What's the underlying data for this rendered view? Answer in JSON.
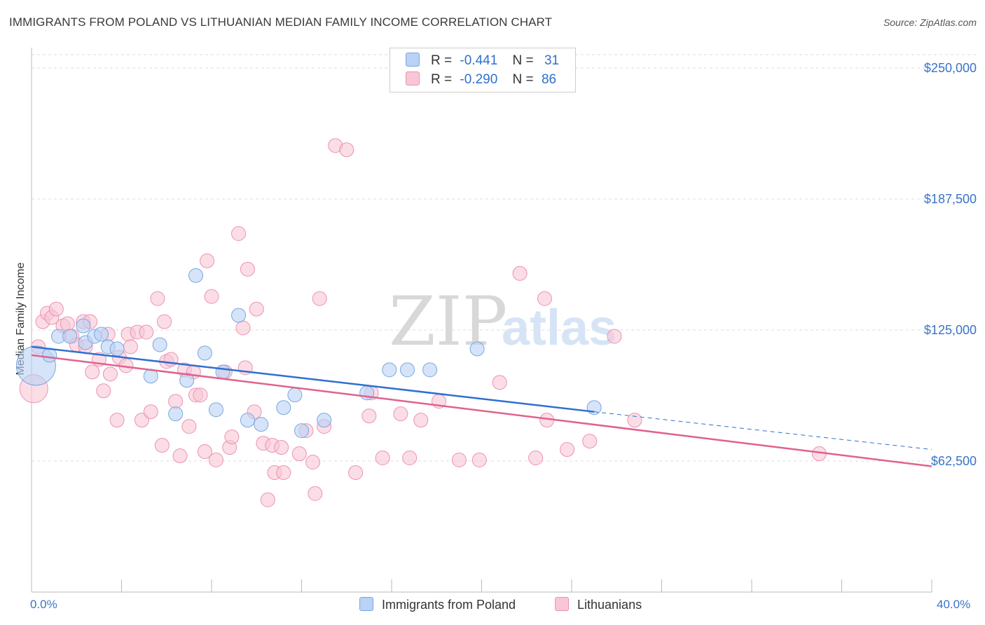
{
  "title": "IMMIGRANTS FROM POLAND VS LITHUANIAN MEDIAN FAMILY INCOME CORRELATION CHART",
  "source": "Source: ZipAtlas.com",
  "watermark": {
    "zip": "ZIP",
    "atlas": "atlas"
  },
  "legend": {
    "poland": {
      "r_label": "R =",
      "r_value": "-0.441",
      "n_label": "N =",
      "n_value": "31"
    },
    "lithuanians": {
      "r_label": "R =",
      "r_value": "-0.290",
      "n_label": "N =",
      "n_value": "86"
    }
  },
  "colors": {
    "poland_fill": "#b9d2f5",
    "poland_stroke": "#7aa6e0",
    "poland_line": "#2f6fd0",
    "lith_fill": "#f8c6d6",
    "lith_stroke": "#ec92b0",
    "lith_line": "#e0628e",
    "axis_text": "#3a74c8",
    "grid": "#dddddd"
  },
  "chart_data": {
    "type": "scatter",
    "title": "IMMIGRANTS FROM POLAND VS LITHUANIAN MEDIAN FAMILY INCOME CORRELATION CHART",
    "xlabel": "",
    "ylabel": "Median Family Income",
    "xlim": [
      0,
      40
    ],
    "ylim": [
      0,
      250000
    ],
    "x_tick_labels": [
      "0.0%",
      "40.0%"
    ],
    "y_ticks": [
      62500,
      125000,
      187500,
      250000
    ],
    "y_tick_labels": [
      "$62,500",
      "$125,000",
      "$187,500",
      "$250,000"
    ],
    "grid": true,
    "legend_position": "top-center",
    "series": [
      {
        "name": "Immigrants from Poland",
        "points": [
          [
            0.2,
            108000,
            3
          ],
          [
            0.8,
            113000,
            1
          ],
          [
            1.2,
            122000,
            1
          ],
          [
            1.7,
            122000,
            1
          ],
          [
            2.3,
            127000,
            1
          ],
          [
            2.4,
            119000,
            1
          ],
          [
            2.8,
            122000,
            1
          ],
          [
            3.1,
            123000,
            1
          ],
          [
            3.4,
            117000,
            1
          ],
          [
            3.8,
            116000,
            1
          ],
          [
            5.3,
            103000,
            1
          ],
          [
            5.7,
            118000,
            1
          ],
          [
            6.4,
            85000,
            1
          ],
          [
            6.9,
            101000,
            1
          ],
          [
            7.3,
            151000,
            1
          ],
          [
            7.7,
            114000,
            1
          ],
          [
            8.2,
            87000,
            1
          ],
          [
            8.5,
            105000,
            1
          ],
          [
            9.2,
            132000,
            1
          ],
          [
            9.6,
            82000,
            1
          ],
          [
            10.2,
            80000,
            1
          ],
          [
            11.2,
            88000,
            1
          ],
          [
            11.7,
            94000,
            1
          ],
          [
            12.0,
            77000,
            1
          ],
          [
            13.0,
            82000,
            1
          ],
          [
            14.9,
            95000,
            1
          ],
          [
            15.9,
            106000,
            1
          ],
          [
            16.7,
            106000,
            1
          ],
          [
            17.7,
            106000,
            1
          ],
          [
            19.8,
            116000,
            1
          ],
          [
            25.0,
            88000,
            1
          ]
        ]
      },
      {
        "name": "Lithuanians",
        "points": [
          [
            0.1,
            97000,
            2
          ],
          [
            0.3,
            117000,
            1
          ],
          [
            0.5,
            129000,
            1
          ],
          [
            0.7,
            133000,
            1
          ],
          [
            0.9,
            131000,
            1
          ],
          [
            1.1,
            135000,
            1
          ],
          [
            1.4,
            127000,
            1
          ],
          [
            1.6,
            128000,
            1
          ],
          [
            1.8,
            122000,
            1
          ],
          [
            2.0,
            118000,
            1
          ],
          [
            2.3,
            129000,
            1
          ],
          [
            2.4,
            117000,
            1
          ],
          [
            2.6,
            129000,
            1
          ],
          [
            2.7,
            105000,
            1
          ],
          [
            3.0,
            111000,
            1
          ],
          [
            3.2,
            96000,
            1
          ],
          [
            3.4,
            123000,
            1
          ],
          [
            3.5,
            104000,
            1
          ],
          [
            3.8,
            82000,
            1
          ],
          [
            3.9,
            112000,
            1
          ],
          [
            4.2,
            108000,
            1
          ],
          [
            4.3,
            123000,
            1
          ],
          [
            4.4,
            117000,
            1
          ],
          [
            4.7,
            124000,
            1
          ],
          [
            4.9,
            82000,
            1
          ],
          [
            5.1,
            124000,
            1
          ],
          [
            5.3,
            86000,
            1
          ],
          [
            5.6,
            140000,
            1
          ],
          [
            5.8,
            70000,
            1
          ],
          [
            5.9,
            129000,
            1
          ],
          [
            6.0,
            110000,
            1
          ],
          [
            6.2,
            111000,
            1
          ],
          [
            6.4,
            91000,
            1
          ],
          [
            6.6,
            65000,
            1
          ],
          [
            6.8,
            106000,
            1
          ],
          [
            7.0,
            79000,
            1
          ],
          [
            7.2,
            105000,
            1
          ],
          [
            7.3,
            94000,
            1
          ],
          [
            7.5,
            94000,
            1
          ],
          [
            7.7,
            67000,
            1
          ],
          [
            7.8,
            158000,
            1
          ],
          [
            8.0,
            141000,
            1
          ],
          [
            8.2,
            63000,
            1
          ],
          [
            8.6,
            105000,
            1
          ],
          [
            8.8,
            69000,
            1
          ],
          [
            8.9,
            74000,
            1
          ],
          [
            9.2,
            171000,
            1
          ],
          [
            9.4,
            126000,
            1
          ],
          [
            9.5,
            107000,
            1
          ],
          [
            9.6,
            154000,
            1
          ],
          [
            9.9,
            86000,
            1
          ],
          [
            10.0,
            135000,
            1
          ],
          [
            10.3,
            71000,
            1
          ],
          [
            10.5,
            44000,
            1
          ],
          [
            10.7,
            70000,
            1
          ],
          [
            10.8,
            57000,
            1
          ],
          [
            11.1,
            69000,
            1
          ],
          [
            11.2,
            57000,
            1
          ],
          [
            11.9,
            66000,
            1
          ],
          [
            12.2,
            77000,
            1
          ],
          [
            12.5,
            62000,
            1
          ],
          [
            12.6,
            47000,
            1
          ],
          [
            12.8,
            140000,
            1
          ],
          [
            13.0,
            79000,
            1
          ],
          [
            13.5,
            213000,
            1
          ],
          [
            14.0,
            211000,
            1
          ],
          [
            14.4,
            57000,
            1
          ],
          [
            15.0,
            84000,
            1
          ],
          [
            15.1,
            95000,
            1
          ],
          [
            15.6,
            64000,
            1
          ],
          [
            16.4,
            85000,
            1
          ],
          [
            16.8,
            64000,
            1
          ],
          [
            17.3,
            82000,
            1
          ],
          [
            18.1,
            91000,
            1
          ],
          [
            19.0,
            63000,
            1
          ],
          [
            19.9,
            63000,
            1
          ],
          [
            20.8,
            100000,
            1
          ],
          [
            21.7,
            152000,
            1
          ],
          [
            22.4,
            64000,
            1
          ],
          [
            22.8,
            140000,
            1
          ],
          [
            22.9,
            82000,
            1
          ],
          [
            23.8,
            68000,
            1
          ],
          [
            24.8,
            72000,
            1
          ],
          [
            25.9,
            122000,
            1
          ],
          [
            26.8,
            82000,
            1
          ],
          [
            35.0,
            66000,
            1
          ]
        ]
      }
    ],
    "trendlines": [
      {
        "series": "Immigrants from Poland",
        "x0": 0,
        "y0": 117000,
        "x1": 25,
        "y1": 86000,
        "dashed_to_x": 40,
        "dashed_to_y": 68000
      },
      {
        "series": "Lithuanians",
        "x0": 0,
        "y0": 113000,
        "x1": 40,
        "y1": 60000
      }
    ]
  }
}
